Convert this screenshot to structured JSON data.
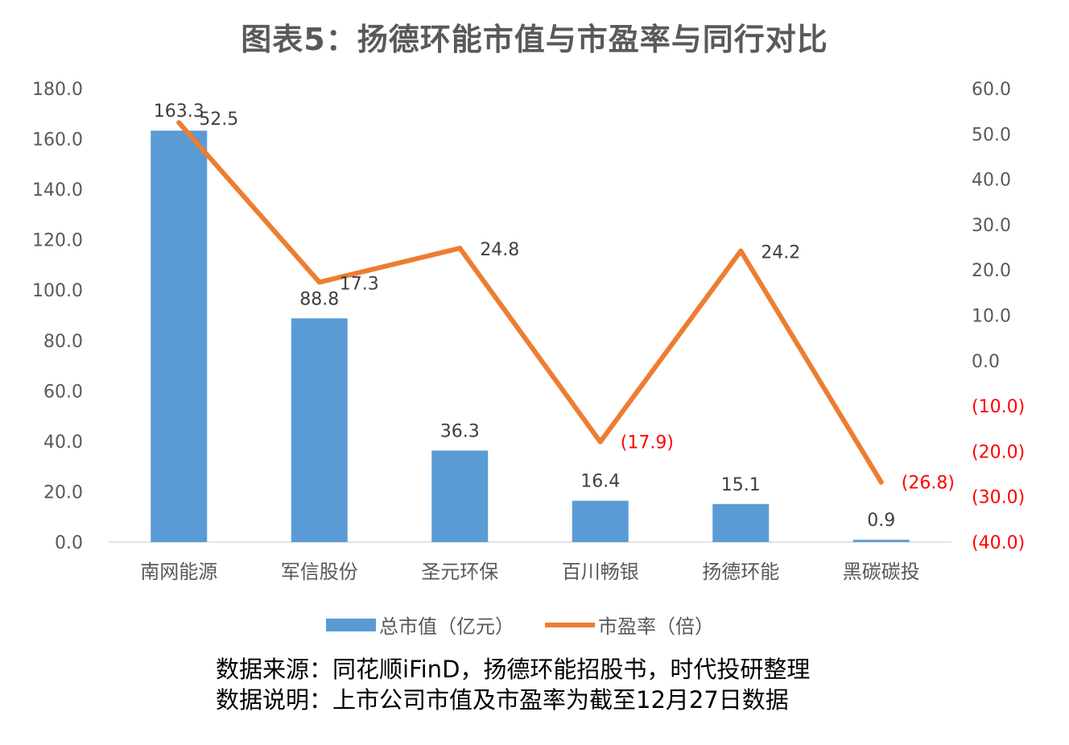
{
  "chart_data": {
    "type": "bar+line",
    "title": "图表5：扬德环能市值与市盈率与同行对比",
    "categories": [
      "南网能源",
      "军信股份",
      "圣元环保",
      "百川畅银",
      "扬德环能",
      "黑碳碳投"
    ],
    "series": [
      {
        "name": "总市值（亿元）",
        "type": "bar",
        "axis": "left",
        "color": "#5B9BD5",
        "values": [
          163.3,
          88.8,
          36.3,
          16.4,
          15.1,
          0.9
        ],
        "labels": [
          "163.3",
          "88.8",
          "36.3",
          "16.4",
          "15.1",
          "0.9"
        ]
      },
      {
        "name": "市盈率（倍）",
        "type": "line",
        "axis": "right",
        "color": "#ED7D31",
        "values": [
          52.5,
          17.3,
          24.8,
          -17.9,
          24.2,
          -26.8
        ],
        "labels": [
          "52.5",
          "17.3",
          "24.8",
          "(17.9)",
          "24.2",
          "(26.8)"
        ]
      }
    ],
    "left_axis": {
      "ylim": [
        0,
        180
      ],
      "ticks": [
        "0.0",
        "20.0",
        "40.0",
        "60.0",
        "80.0",
        "100.0",
        "120.0",
        "140.0",
        "160.0",
        "180.0"
      ]
    },
    "right_axis": {
      "ylim": [
        -40,
        60
      ],
      "ticks": [
        "(40.0)",
        "(30.0)",
        "(20.0)",
        "(10.0)",
        "0.0",
        "10.0",
        "20.0",
        "30.0",
        "40.0",
        "50.0",
        "60.0"
      ]
    },
    "negative_color": "#FF0000",
    "legend": "bottom",
    "grid": false
  },
  "notes": {
    "source": "数据来源：同花顺iFinD，扬德环能招股书，时代投研整理",
    "explanation": "数据说明：上市公司市值及市盈率为截至12月27日数据"
  }
}
